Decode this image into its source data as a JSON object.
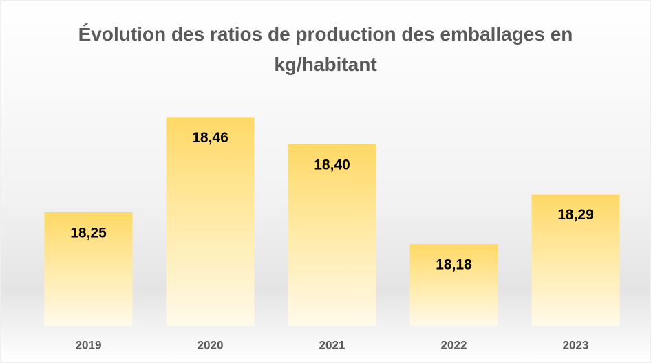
{
  "chart_data": {
    "type": "bar",
    "title": "Évolution des ratios de production des emballages en kg/habitant",
    "categories": [
      "2019",
      "2020",
      "2021",
      "2022",
      "2023"
    ],
    "values": [
      18.25,
      18.46,
      18.4,
      18.18,
      18.29
    ],
    "value_labels": [
      "18,25",
      "18,46",
      "18,40",
      "18,18",
      "18,29"
    ],
    "color": "#ffd966",
    "ylim": [
      18.0,
      18.5
    ]
  }
}
